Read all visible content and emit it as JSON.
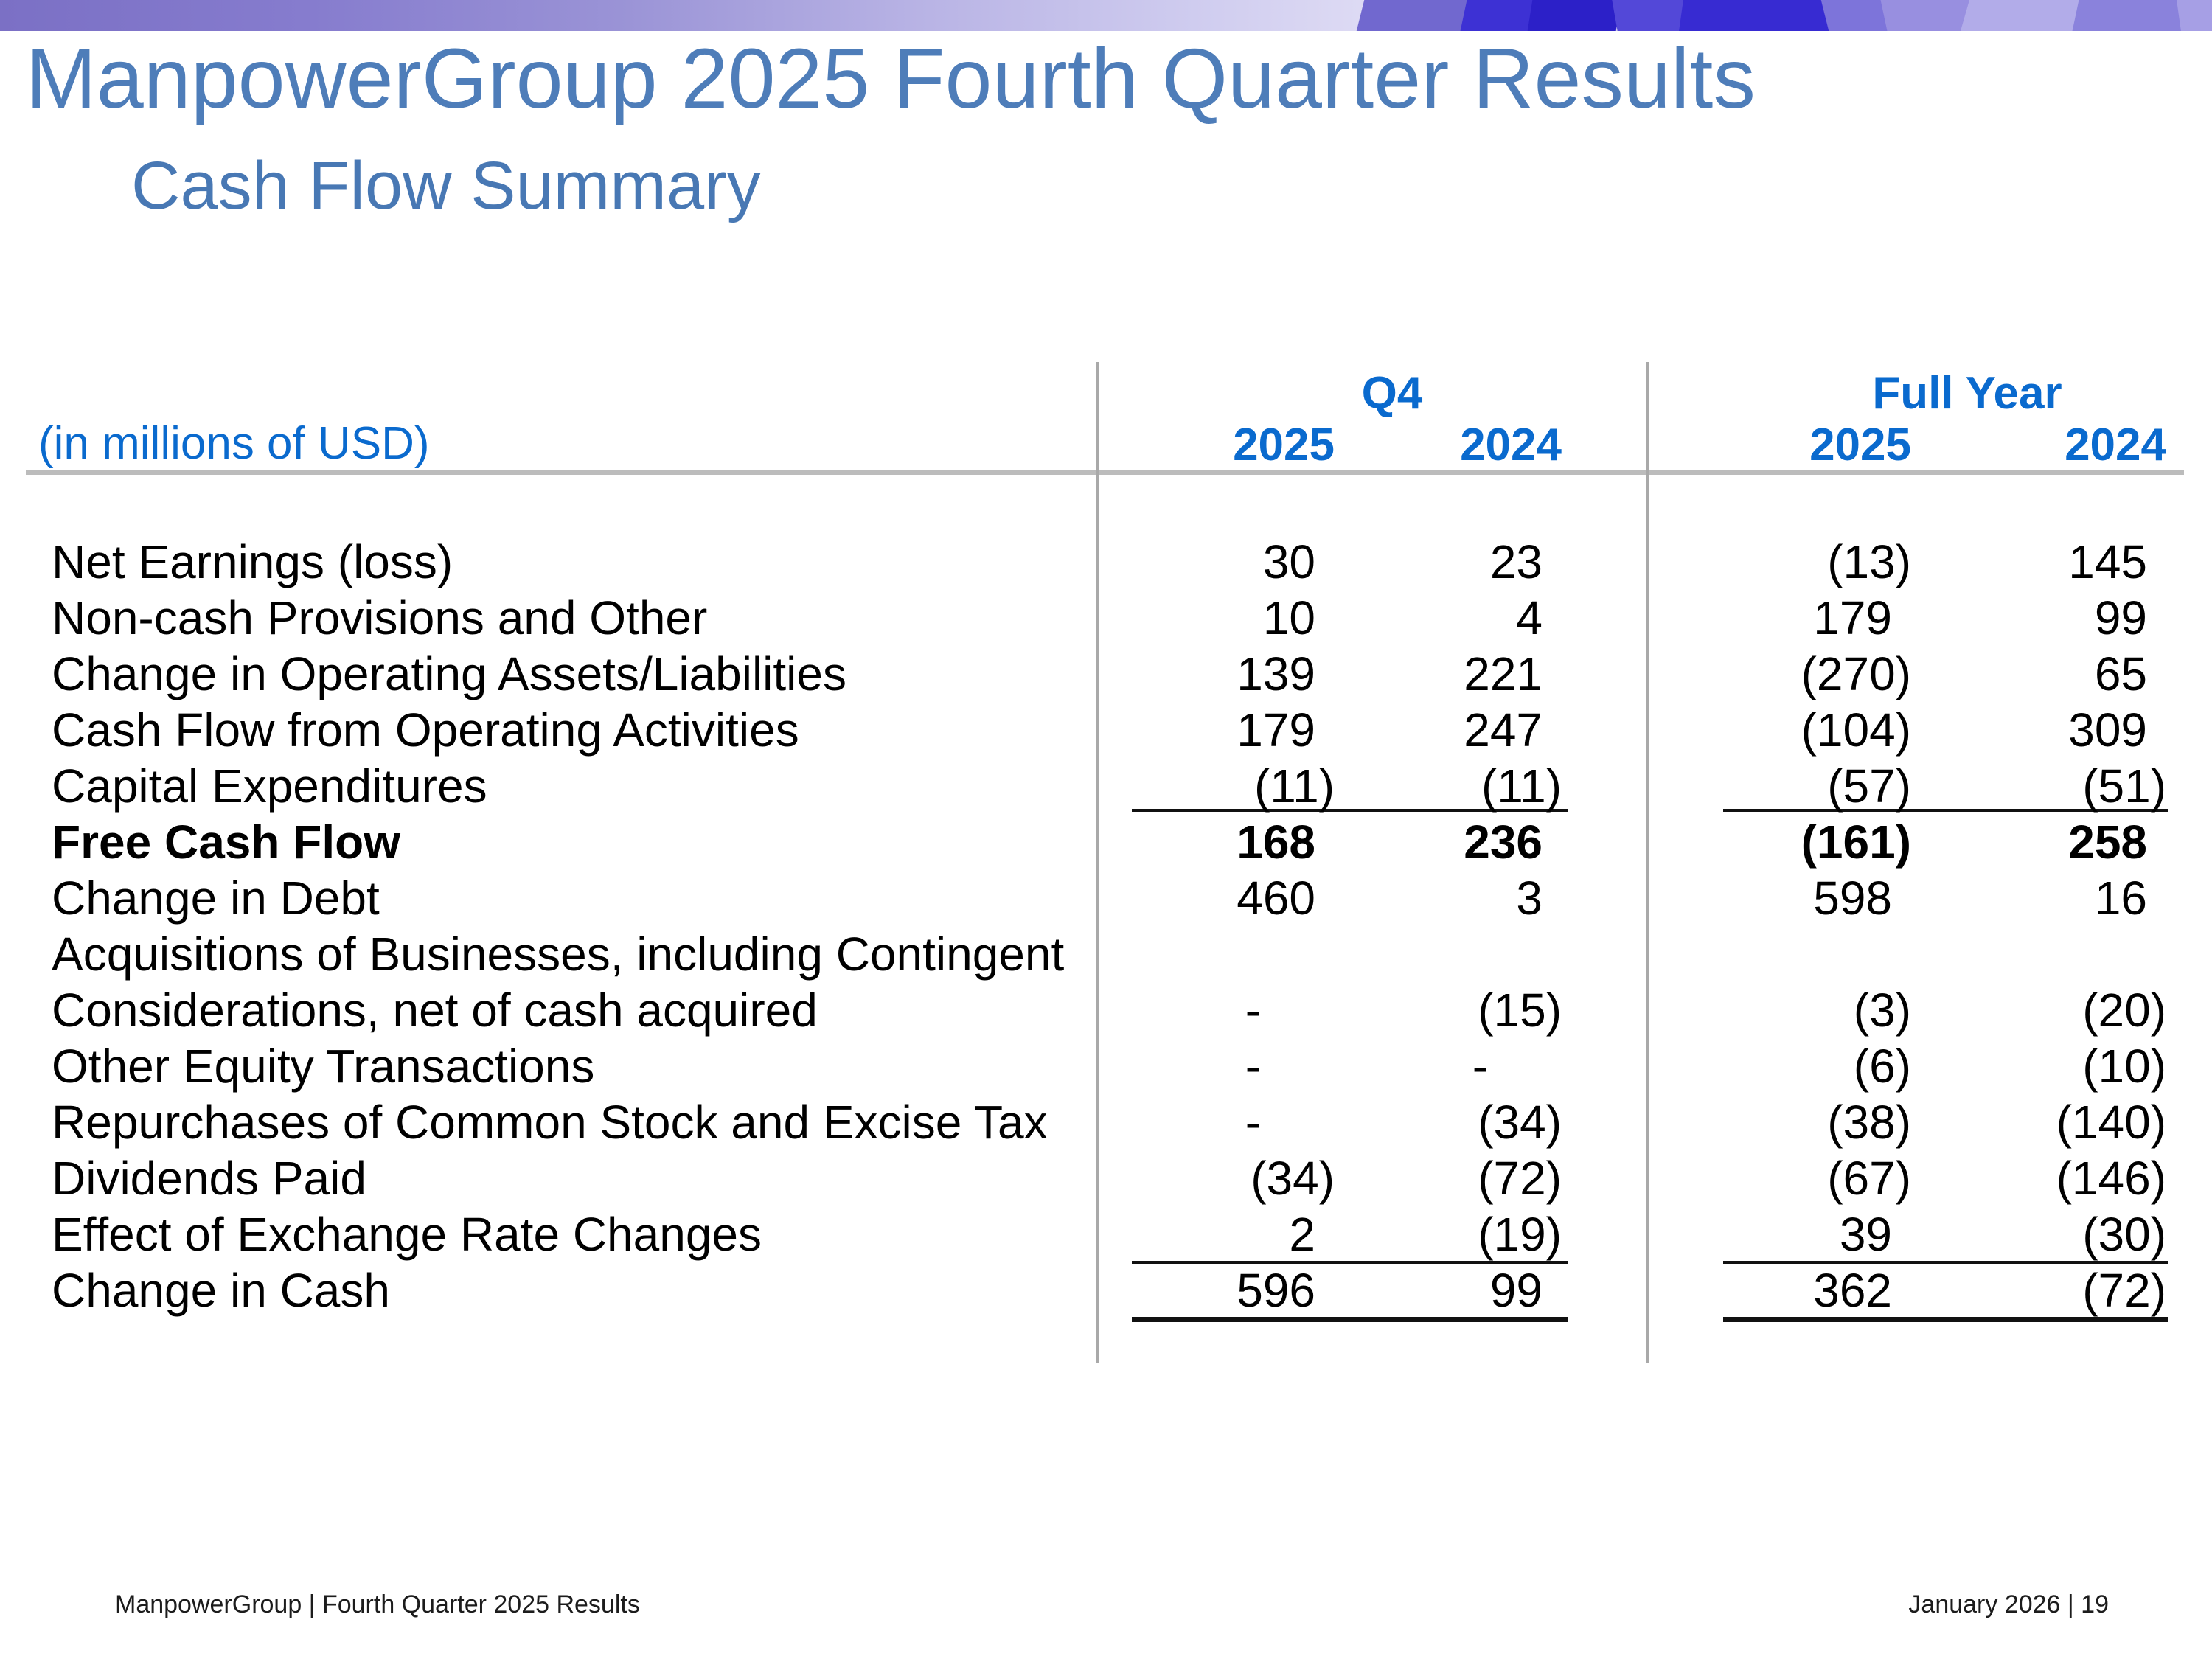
{
  "slide": {
    "title": "ManpowerGroup 2025 Fourth Quarter Results",
    "subtitle": "Cash Flow Summary"
  },
  "table": {
    "unit_label": "(in millions of USD)",
    "column_groups": {
      "q4": "Q4",
      "full_year": "Full Year"
    },
    "year_headers": [
      "2025",
      "2024",
      "2025",
      "2024"
    ],
    "rows": [
      {
        "label": "Net Earnings (loss)",
        "values": [
          "30",
          "23",
          "(13)",
          "145"
        ],
        "bold": false,
        "indent": 0
      },
      {
        "label": "Non-cash Provisions and Other",
        "values": [
          "10",
          "4",
          "179",
          "99"
        ],
        "bold": false,
        "indent": 0
      },
      {
        "label": "Change in Operating Assets/Liabilities",
        "values": [
          "139",
          "221",
          "(270)",
          "65"
        ],
        "bold": false,
        "indent": 0
      },
      {
        "label": "Cash Flow from Operating Activities",
        "values": [
          "179",
          "247",
          "(104)",
          "309"
        ],
        "bold": false,
        "indent": 0
      },
      {
        "label": "Capital Expenditures",
        "values": [
          "(11)",
          "(11)",
          "(57)",
          "(51)"
        ],
        "bold": false,
        "indent": 0
      },
      {
        "label": "Free Cash Flow",
        "values": [
          "168",
          "236",
          "(161)",
          "258"
        ],
        "bold": true,
        "indent": 1
      },
      {
        "label": "Change in Debt",
        "values": [
          "460",
          "3",
          "598",
          "16"
        ],
        "bold": false,
        "indent": 0
      },
      {
        "label": "Acquisitions of Businesses, including Contingent",
        "values": [
          "",
          "",
          "",
          ""
        ],
        "bold": false,
        "indent": 0
      },
      {
        "label": "Considerations, net of cash acquired",
        "values": [
          "-",
          "(15)",
          "(3)",
          "(20)"
        ],
        "bold": false,
        "indent": 2
      },
      {
        "label": "Other Equity Transactions",
        "values": [
          "-",
          "-",
          "(6)",
          "(10)"
        ],
        "bold": false,
        "indent": 0
      },
      {
        "label": "Repurchases of Common Stock and Excise Tax",
        "values": [
          "-",
          "(34)",
          "(38)",
          "(140)"
        ],
        "bold": false,
        "indent": 0
      },
      {
        "label": "Dividends Paid",
        "values": [
          "(34)",
          "(72)",
          "(67)",
          "(146)"
        ],
        "bold": false,
        "indent": 0
      },
      {
        "label": "Effect of Exchange Rate Changes",
        "values": [
          "2",
          "(19)",
          "39",
          "(30)"
        ],
        "bold": false,
        "indent": 0
      },
      {
        "label": "Change in Cash",
        "values": [
          "596",
          "99",
          "362",
          "(72)"
        ],
        "bold": false,
        "indent": 1
      }
    ]
  },
  "footer": {
    "left": "ManpowerGroup  |  Fourth Quarter 2025 Results",
    "right": "January 2026   |   19"
  }
}
